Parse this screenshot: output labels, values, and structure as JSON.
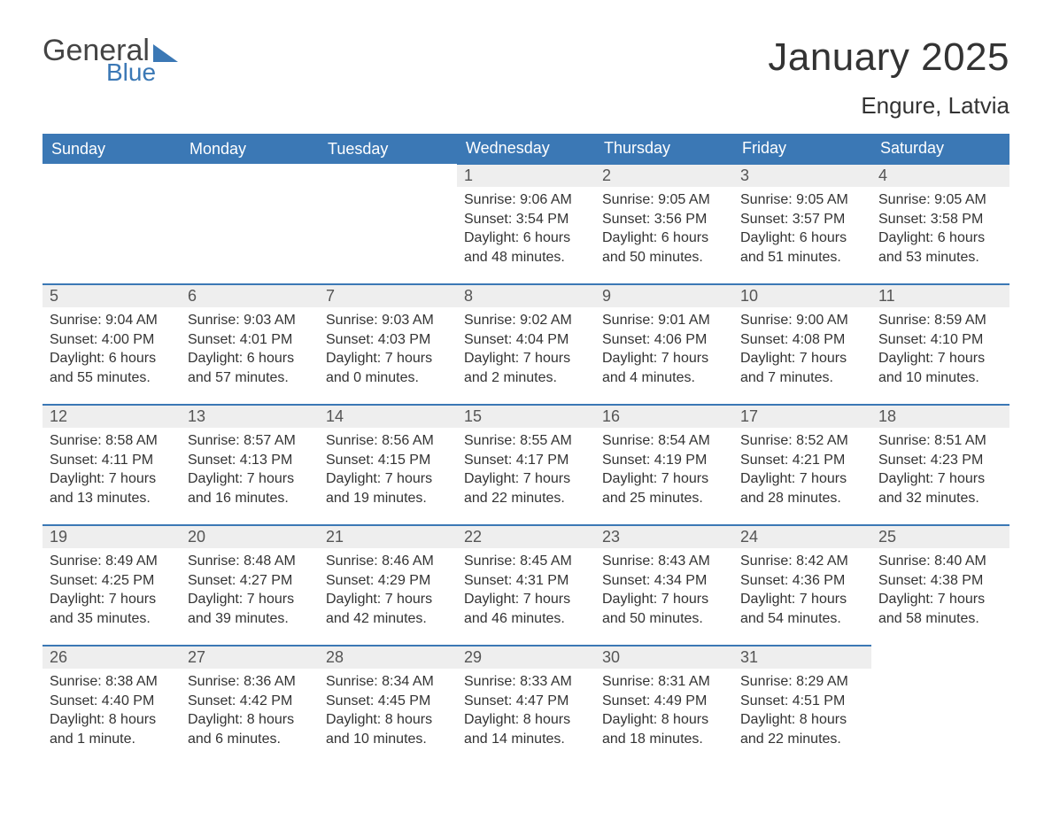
{
  "logo": {
    "text1": "General",
    "text2": "Blue"
  },
  "title": {
    "month": "January 2025",
    "location": "Engure, Latvia"
  },
  "style": {
    "header_bg": "#3b78b5",
    "header_fg": "#ffffff",
    "daynum_bg": "#eeeeee",
    "daynum_border": "#3b78b5",
    "body_bg": "#ffffff",
    "text_color": "#333333",
    "logo_gray": "#444444",
    "logo_blue": "#3b78b5"
  },
  "weekdays": [
    "Sunday",
    "Monday",
    "Tuesday",
    "Wednesday",
    "Thursday",
    "Friday",
    "Saturday"
  ],
  "weeks": [
    [
      null,
      null,
      null,
      {
        "n": "1",
        "sunrise": "9:06 AM",
        "sunset": "3:54 PM",
        "daylight": "6 hours and 48 minutes."
      },
      {
        "n": "2",
        "sunrise": "9:05 AM",
        "sunset": "3:56 PM",
        "daylight": "6 hours and 50 minutes."
      },
      {
        "n": "3",
        "sunrise": "9:05 AM",
        "sunset": "3:57 PM",
        "daylight": "6 hours and 51 minutes."
      },
      {
        "n": "4",
        "sunrise": "9:05 AM",
        "sunset": "3:58 PM",
        "daylight": "6 hours and 53 minutes."
      }
    ],
    [
      {
        "n": "5",
        "sunrise": "9:04 AM",
        "sunset": "4:00 PM",
        "daylight": "6 hours and 55 minutes."
      },
      {
        "n": "6",
        "sunrise": "9:03 AM",
        "sunset": "4:01 PM",
        "daylight": "6 hours and 57 minutes."
      },
      {
        "n": "7",
        "sunrise": "9:03 AM",
        "sunset": "4:03 PM",
        "daylight": "7 hours and 0 minutes."
      },
      {
        "n": "8",
        "sunrise": "9:02 AM",
        "sunset": "4:04 PM",
        "daylight": "7 hours and 2 minutes."
      },
      {
        "n": "9",
        "sunrise": "9:01 AM",
        "sunset": "4:06 PM",
        "daylight": "7 hours and 4 minutes."
      },
      {
        "n": "10",
        "sunrise": "9:00 AM",
        "sunset": "4:08 PM",
        "daylight": "7 hours and 7 minutes."
      },
      {
        "n": "11",
        "sunrise": "8:59 AM",
        "sunset": "4:10 PM",
        "daylight": "7 hours and 10 minutes."
      }
    ],
    [
      {
        "n": "12",
        "sunrise": "8:58 AM",
        "sunset": "4:11 PM",
        "daylight": "7 hours and 13 minutes."
      },
      {
        "n": "13",
        "sunrise": "8:57 AM",
        "sunset": "4:13 PM",
        "daylight": "7 hours and 16 minutes."
      },
      {
        "n": "14",
        "sunrise": "8:56 AM",
        "sunset": "4:15 PM",
        "daylight": "7 hours and 19 minutes."
      },
      {
        "n": "15",
        "sunrise": "8:55 AM",
        "sunset": "4:17 PM",
        "daylight": "7 hours and 22 minutes."
      },
      {
        "n": "16",
        "sunrise": "8:54 AM",
        "sunset": "4:19 PM",
        "daylight": "7 hours and 25 minutes."
      },
      {
        "n": "17",
        "sunrise": "8:52 AM",
        "sunset": "4:21 PM",
        "daylight": "7 hours and 28 minutes."
      },
      {
        "n": "18",
        "sunrise": "8:51 AM",
        "sunset": "4:23 PM",
        "daylight": "7 hours and 32 minutes."
      }
    ],
    [
      {
        "n": "19",
        "sunrise": "8:49 AM",
        "sunset": "4:25 PM",
        "daylight": "7 hours and 35 minutes."
      },
      {
        "n": "20",
        "sunrise": "8:48 AM",
        "sunset": "4:27 PM",
        "daylight": "7 hours and 39 minutes."
      },
      {
        "n": "21",
        "sunrise": "8:46 AM",
        "sunset": "4:29 PM",
        "daylight": "7 hours and 42 minutes."
      },
      {
        "n": "22",
        "sunrise": "8:45 AM",
        "sunset": "4:31 PM",
        "daylight": "7 hours and 46 minutes."
      },
      {
        "n": "23",
        "sunrise": "8:43 AM",
        "sunset": "4:34 PM",
        "daylight": "7 hours and 50 minutes."
      },
      {
        "n": "24",
        "sunrise": "8:42 AM",
        "sunset": "4:36 PM",
        "daylight": "7 hours and 54 minutes."
      },
      {
        "n": "25",
        "sunrise": "8:40 AM",
        "sunset": "4:38 PM",
        "daylight": "7 hours and 58 minutes."
      }
    ],
    [
      {
        "n": "26",
        "sunrise": "8:38 AM",
        "sunset": "4:40 PM",
        "daylight": "8 hours and 1 minute."
      },
      {
        "n": "27",
        "sunrise": "8:36 AM",
        "sunset": "4:42 PM",
        "daylight": "8 hours and 6 minutes."
      },
      {
        "n": "28",
        "sunrise": "8:34 AM",
        "sunset": "4:45 PM",
        "daylight": "8 hours and 10 minutes."
      },
      {
        "n": "29",
        "sunrise": "8:33 AM",
        "sunset": "4:47 PM",
        "daylight": "8 hours and 14 minutes."
      },
      {
        "n": "30",
        "sunrise": "8:31 AM",
        "sunset": "4:49 PM",
        "daylight": "8 hours and 18 minutes."
      },
      {
        "n": "31",
        "sunrise": "8:29 AM",
        "sunset": "4:51 PM",
        "daylight": "8 hours and 22 minutes."
      },
      null
    ]
  ],
  "labels": {
    "sunrise": "Sunrise: ",
    "sunset": "Sunset: ",
    "daylight": "Daylight: "
  }
}
